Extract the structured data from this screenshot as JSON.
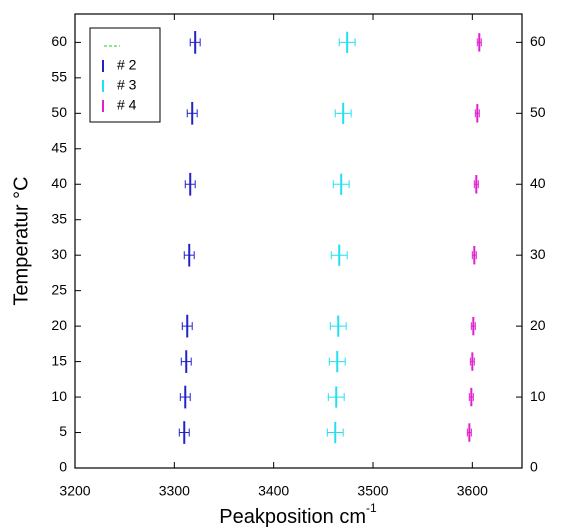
{
  "chart_data": {
    "type": "scatter",
    "xlabel": {
      "text": "Peakposition cm",
      "superscript": "-1"
    },
    "ylabel": "Temperatur °C",
    "xlim": [
      3200,
      3650
    ],
    "xticks": [
      3200,
      3300,
      3400,
      3500,
      3600
    ],
    "ylim": [
      0,
      64
    ],
    "yticks": [
      0,
      5,
      10,
      15,
      20,
      25,
      30,
      35,
      40,
      45,
      50,
      55,
      60
    ],
    "y2lim": [
      0,
      64
    ],
    "y2ticks": [
      0,
      10,
      20,
      30,
      40,
      50,
      60
    ],
    "legend": "upper left",
    "series": [
      {
        "name": "# 2",
        "color": "#2222c8",
        "x": [
          3310,
          3311,
          3312,
          3313,
          3315,
          3316,
          3318,
          3321
        ],
        "values": [
          5,
          10,
          15,
          20,
          30,
          40,
          50,
          60
        ],
        "xerr": [
          5,
          5,
          5,
          5,
          5,
          5,
          5,
          5
        ],
        "yerr": [
          1.6,
          1.6,
          1.6,
          1.6,
          1.6,
          1.6,
          1.6,
          1.6
        ]
      },
      {
        "name": "# 3",
        "color": "#22e0f0",
        "x": [
          3462,
          3463,
          3464,
          3465,
          3466,
          3468,
          3470,
          3474
        ],
        "values": [
          5,
          10,
          15,
          20,
          30,
          40,
          50,
          60
        ],
        "xerr": [
          8,
          8,
          8,
          8,
          8,
          8,
          8,
          8
        ],
        "yerr": [
          1.5,
          1.5,
          1.5,
          1.5,
          1.5,
          1.5,
          1.5,
          1.5
        ]
      },
      {
        "name": "# 4",
        "color": "#e020d0",
        "x": [
          3597,
          3599,
          3600,
          3601,
          3602,
          3604,
          3605,
          3607
        ],
        "values": [
          5,
          10,
          15,
          20,
          30,
          40,
          50,
          60
        ],
        "xerr": [
          2,
          2,
          2,
          2,
          2,
          2,
          2,
          2
        ],
        "yerr": [
          1.3,
          1.3,
          1.3,
          1.3,
          1.3,
          1.3,
          1.3,
          1.3
        ]
      }
    ]
  }
}
